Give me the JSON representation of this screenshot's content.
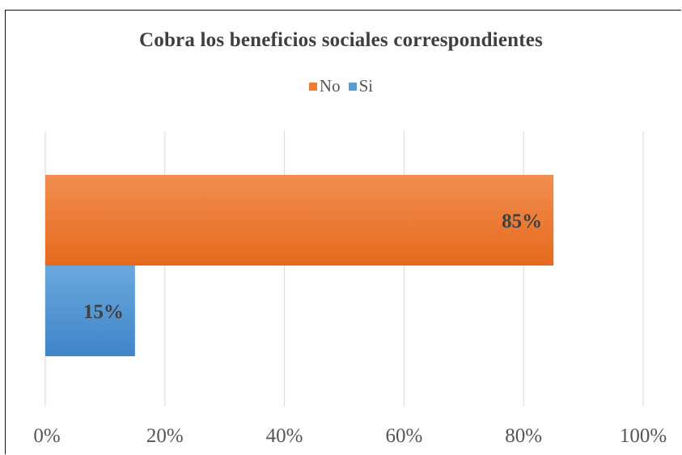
{
  "chart_data": {
    "type": "bar",
    "orientation": "horizontal",
    "title": "Cobra los beneficios sociales correspondientes",
    "xlabel": "",
    "ylabel": "",
    "xlim": [
      0,
      100
    ],
    "x_ticks": [
      "0%",
      "20%",
      "40%",
      "60%",
      "80%",
      "100%"
    ],
    "grid": true,
    "legend_position": "top",
    "series": [
      {
        "name": "No",
        "value": 85,
        "label": "85%",
        "color": "#ee7d31"
      },
      {
        "name": "Si",
        "value": 15,
        "label": "15%",
        "color": "#5b9bd5"
      }
    ]
  }
}
